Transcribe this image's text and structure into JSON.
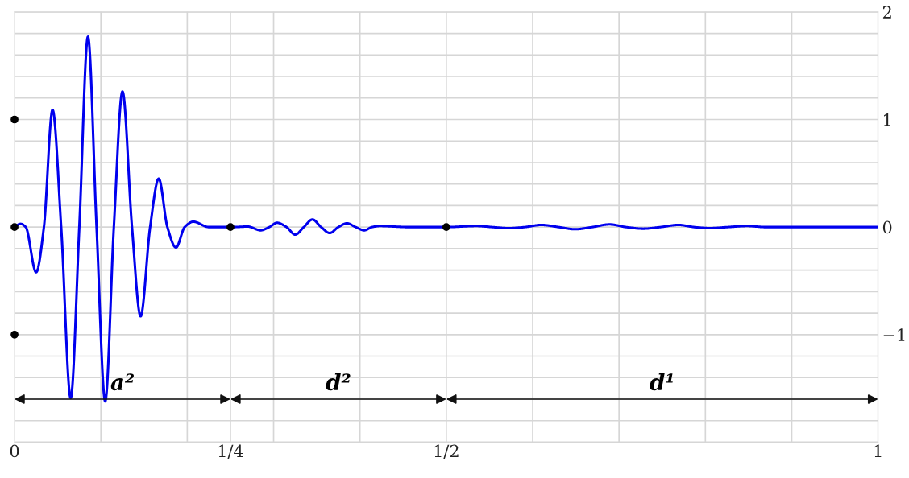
{
  "chart_data": {
    "type": "line",
    "series": [
      {
        "color": "#0000ee",
        "marker": "none",
        "line_style": "solid",
        "x": [
          0,
          0.007,
          0.013,
          0.025,
          0.034,
          0.044,
          0.054,
          0.065,
          0.075,
          0.085,
          0.095,
          0.105,
          0.115,
          0.125,
          0.136,
          0.146,
          0.157,
          0.167,
          0.177,
          0.187,
          0.197,
          0.207,
          0.225,
          0.253,
          0.27,
          0.285,
          0.295,
          0.304,
          0.315,
          0.325,
          0.335,
          0.345,
          0.355,
          0.365,
          0.375,
          0.385,
          0.395,
          0.405,
          0.414,
          0.423,
          0.456,
          0.5,
          0.535,
          0.553,
          0.572,
          0.591,
          0.61,
          0.63,
          0.649,
          0.669,
          0.689,
          0.708,
          0.728,
          0.748,
          0.769,
          0.787,
          0.805,
          0.826,
          0.848,
          0.87,
          1
        ],
        "values": [
          0,
          0.03,
          0,
          -0.42,
          0,
          1.09,
          0,
          -1.59,
          0,
          1.77,
          0,
          -1.62,
          0,
          1.26,
          0,
          -0.83,
          0,
          0.45,
          0,
          -0.19,
          0,
          0.05,
          0,
          0,
          0.005,
          -0.03,
          0,
          0.04,
          0,
          -0.07,
          0,
          0.07,
          0,
          -0.055,
          0,
          0.035,
          0,
          -0.03,
          0,
          0.01,
          0,
          0,
          0.01,
          0,
          -0.01,
          0,
          0.02,
          0,
          -0.02,
          0,
          0.025,
          0,
          -0.015,
          0,
          0.02,
          0,
          -0.01,
          0,
          0.01,
          0,
          0
        ]
      },
      {
        "type": "scatter",
        "color": "#000000",
        "marker": "circle",
        "x": [
          0,
          0,
          0,
          0.25,
          0.5
        ],
        "values": [
          1,
          0,
          -1,
          0,
          0
        ]
      }
    ],
    "xlim": [
      0,
      1
    ],
    "ylim": [
      -2,
      2
    ],
    "xticks": [
      0,
      {
        "value": 0.1,
        "label": null
      },
      {
        "value": 0.2,
        "label": null
      },
      {
        "value": 0.25,
        "label": "1/4"
      },
      {
        "value": 0.3,
        "label": null
      },
      {
        "value": 0.4,
        "label": null
      },
      {
        "value": 0.5,
        "label": "1/2"
      },
      {
        "value": 0.6,
        "label": null
      },
      {
        "value": 0.7,
        "label": null
      },
      {
        "value": 0.8,
        "label": null
      },
      {
        "value": 0.9,
        "label": null
      },
      1
    ],
    "yticks": [
      {
        "value": -2,
        "label": null
      },
      {
        "value": -1.8,
        "label": null
      },
      {
        "value": -1.6,
        "label": null
      },
      {
        "value": -1.4,
        "label": null
      },
      {
        "value": -1.2,
        "label": null
      },
      {
        "value": -1,
        "label": "−1"
      },
      {
        "value": -0.8,
        "label": null
      },
      {
        "value": -0.6,
        "label": null
      },
      {
        "value": -0.4,
        "label": null
      },
      {
        "value": -0.2,
        "label": null
      },
      0,
      {
        "value": 0.2,
        "label": null
      },
      {
        "value": 0.4,
        "label": null
      },
      {
        "value": 0.6,
        "label": null
      },
      {
        "value": 0.8,
        "label": null
      },
      1,
      {
        "value": 1.2,
        "label": null
      },
      {
        "value": 1.4,
        "label": null
      },
      {
        "value": 1.6,
        "label": null
      },
      {
        "value": 1.8,
        "label": null
      },
      2
    ],
    "grid": true,
    "annotations": [
      "a²",
      "d²",
      "d¹"
    ]
  }
}
